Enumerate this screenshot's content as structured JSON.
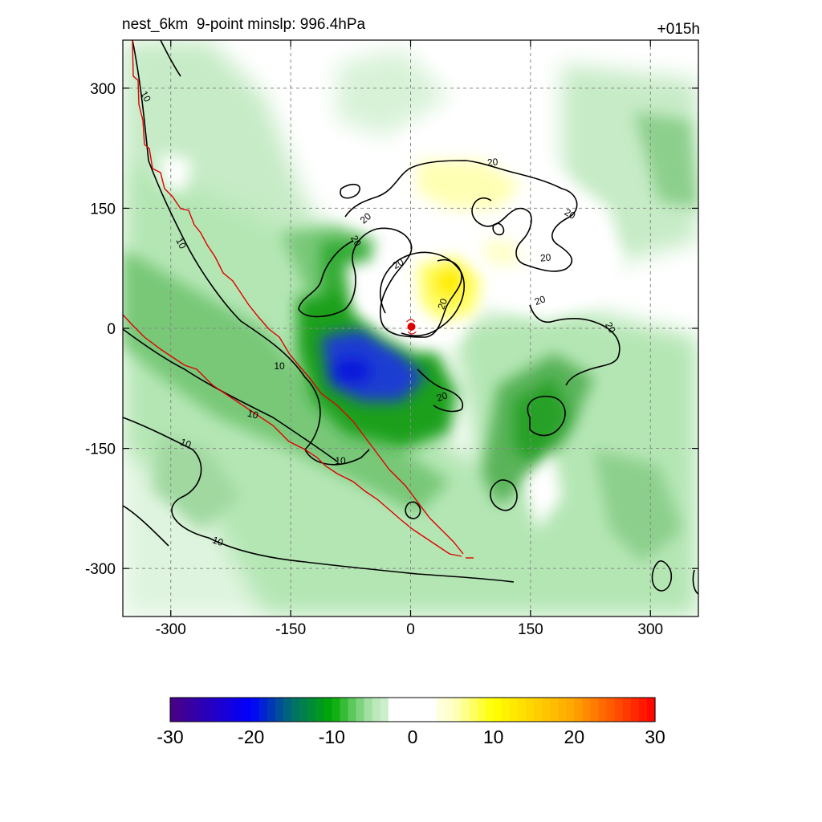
{
  "header": {
    "title": "nest_6km  9-point minslp: 996.4hPa",
    "forecast_hour": "+015h"
  },
  "chart_data": {
    "type": "heatmap",
    "title": "nest_6km  9-point minslp: 996.4hPa",
    "annotation_right": "+015h",
    "xlim": [
      -360,
      360
    ],
    "ylim": [
      -360,
      360
    ],
    "xticks": [
      -300,
      -150,
      0,
      150,
      300
    ],
    "yticks": [
      -300,
      -150,
      0,
      150,
      300
    ],
    "grid": true,
    "colorbar": {
      "min": -30,
      "max": 30,
      "ticks": [
        -30,
        -20,
        -10,
        0,
        10,
        20,
        30
      ],
      "colors": {
        "-30": "#4b0082",
        "-20": "#0000ff",
        "-15": "#006e6e",
        "-10": "#00aa00",
        "-5": "#b4e6b4",
        "0": "#ffffff",
        "5": "#ffffc8",
        "10": "#ffff00",
        "20": "#ffa500",
        "30": "#ff0000"
      }
    },
    "contour_labels": [
      "10",
      "10",
      "10",
      "10",
      "10",
      "10",
      "10",
      "20",
      "20",
      "20",
      "20",
      "20",
      "20",
      "20",
      "20"
    ],
    "storm_center": [
      0,
      0
    ]
  }
}
